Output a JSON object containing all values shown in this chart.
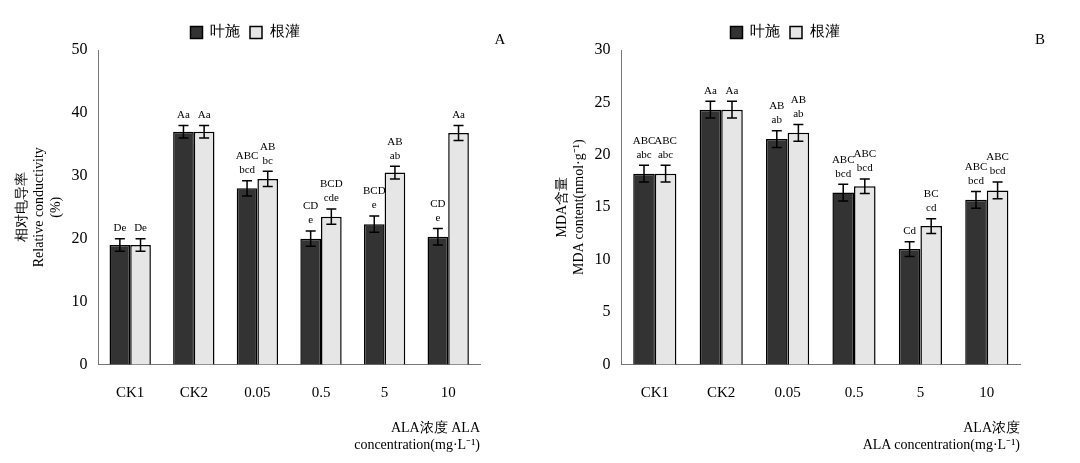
{
  "chart_data": [
    {
      "type": "bar",
      "annotations": [
        "A"
      ],
      "xlabel": "ALA浓度 ALA\nconcentration(mg·L⁻¹)",
      "ylabel": "相对电导率\nRelative conductivity\n(%)",
      "categories": [
        "CK1",
        "CK2",
        "0.05",
        "0.5",
        "5",
        "10"
      ],
      "ylim": [
        0,
        50
      ],
      "yticks": [
        0,
        10,
        20,
        30,
        40,
        50
      ],
      "grid": false,
      "legend": "top",
      "series": [
        {
          "name": "叶施",
          "color": "#333333",
          "values": [
            19,
            37,
            28,
            20,
            22.3,
            20.3
          ],
          "errors": [
            1,
            1,
            1.2,
            1.2,
            1.3,
            1.3
          ],
          "value_labels": [
            "De",
            "Aa",
            "ABC\nbcd",
            "CD\ne",
            "BCD\ne",
            "CD\ne"
          ]
        },
        {
          "name": "根灌",
          "color": "#e6e6e6",
          "values": [
            19,
            37,
            29.5,
            23.5,
            30.5,
            36.8
          ],
          "errors": [
            1,
            1,
            1.2,
            1.2,
            1,
            1.2
          ],
          "value_labels": [
            "De",
            "Aa",
            "AB\nbc",
            "BCD\ncde",
            "AB\nab",
            "Aa"
          ]
        }
      ]
    },
    {
      "type": "bar",
      "annotations": [
        "B"
      ],
      "xlabel": "ALA浓度\nALA concentration(mg·L⁻¹)",
      "ylabel": "MDA含量\nMDA content(nmol·g⁻¹)",
      "categories": [
        "CK1",
        "CK2",
        "0.05",
        "0.5",
        "5",
        "10"
      ],
      "ylim": [
        0,
        30
      ],
      "yticks": [
        0,
        5,
        10,
        15,
        20,
        25,
        30
      ],
      "grid": false,
      "legend": "top",
      "series": [
        {
          "name": "叶施",
          "color": "#333333",
          "values": [
            18.2,
            24.3,
            21.5,
            16.4,
            11,
            15.7
          ],
          "errors": [
            0.8,
            0.8,
            0.8,
            0.8,
            0.7,
            0.8
          ],
          "value_labels": [
            "ABC\nabc",
            "Aa",
            "AB\nab",
            "ABC\nbcd",
            "Cd",
            "ABC\nbcd"
          ]
        },
        {
          "name": "根灌",
          "color": "#e6e6e6",
          "values": [
            18.2,
            24.3,
            22.1,
            17,
            13.2,
            16.6
          ],
          "errors": [
            0.8,
            0.8,
            0.8,
            0.7,
            0.7,
            0.8
          ],
          "value_labels": [
            "ABC\nabc",
            "Aa",
            "AB\nab",
            "ABC\nbcd",
            "BC\ncd",
            "ABC\nbcd"
          ]
        }
      ]
    }
  ]
}
